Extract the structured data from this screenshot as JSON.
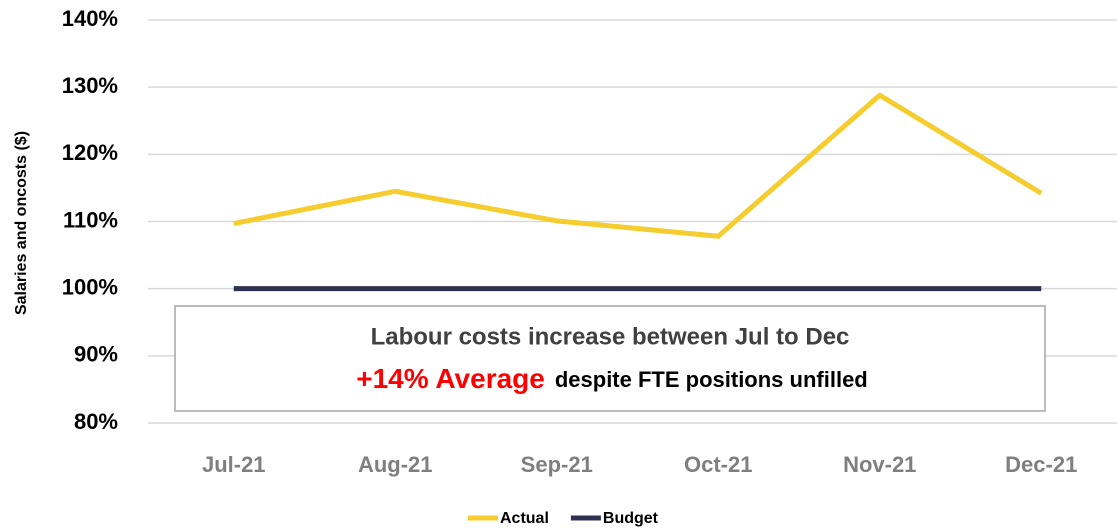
{
  "chart_data": {
    "type": "line",
    "y_axis_label": "Salaries and oncosts ($)",
    "categories": [
      "Jul-21",
      "Aug-21",
      "Sep-21",
      "Oct-21",
      "Nov-21",
      "Dec-21"
    ],
    "series": [
      {
        "name": "Actual",
        "color": "#f5cd2f",
        "values": [
          109.7,
          114.5,
          110.1,
          107.8,
          128.8,
          114.2
        ]
      },
      {
        "name": "Budget",
        "color": "#2e3250",
        "values": [
          100,
          100,
          100,
          100,
          100,
          100
        ]
      }
    ],
    "ylim": [
      80,
      140
    ],
    "yticks": [
      {
        "value": 80,
        "label": "80%"
      },
      {
        "value": 90,
        "label": "90%"
      },
      {
        "value": 100,
        "label": "100%"
      },
      {
        "value": 110,
        "label": "110%"
      },
      {
        "value": 120,
        "label": "120%"
      },
      {
        "value": 130,
        "label": "130%"
      },
      {
        "value": 140,
        "label": "140%"
      }
    ],
    "grid": true,
    "legend": "bottom",
    "annotation": {
      "line1": "Labour costs increase between Jul to Dec",
      "highlight": "+14% Average",
      "line2": "despite FTE positions unfilled"
    }
  }
}
